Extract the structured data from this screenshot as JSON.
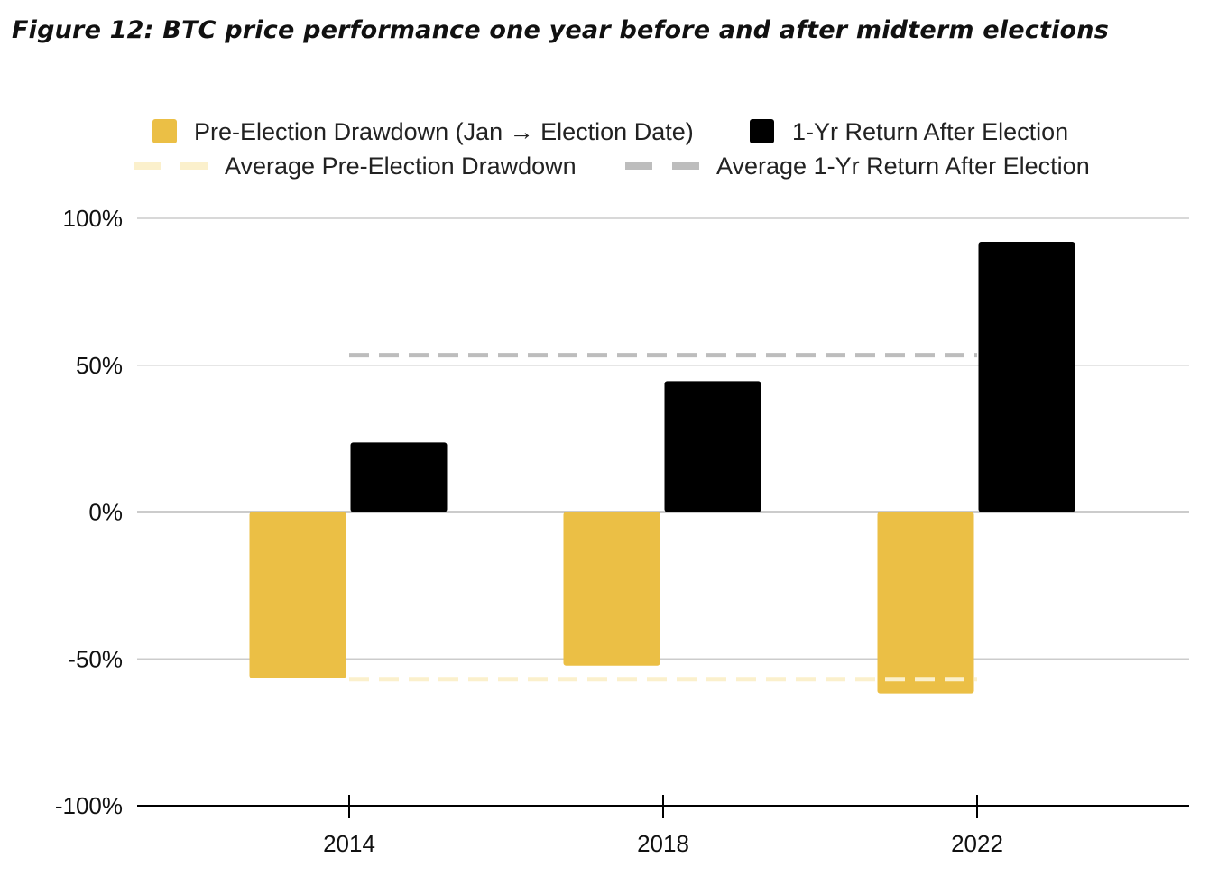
{
  "title": "Figure 12: BTC price performance one year before and after midterm elections",
  "chart_data": {
    "type": "bar",
    "title": "",
    "xlabel": "",
    "ylabel": "",
    "categories": [
      "2014",
      "2018",
      "2022"
    ],
    "series": [
      {
        "name": "Pre-Election Drawdown (Jan → Election Date)",
        "values": [
          -56.6,
          -52.3,
          -61.8
        ],
        "color": "#EBBF45"
      },
      {
        "name": "1-Yr Return After Election",
        "values": [
          23.7,
          44.6,
          92.0
        ],
        "color": "#000000"
      }
    ],
    "reference_lines": [
      {
        "name": "Average Pre-Election Drawdown",
        "value": -56.9,
        "color": "#FBF0CC",
        "style": "dashed"
      },
      {
        "name": "Average 1-Yr Return After Election",
        "value": 53.4,
        "color": "#BDBDBD",
        "style": "dashed"
      }
    ],
    "ylim": [
      -100,
      100
    ],
    "yticks": [
      100,
      50,
      0,
      -50,
      -100
    ],
    "ytick_labels": [
      "100%",
      "50%",
      "0%",
      "-50%",
      "-100%"
    ],
    "grid": true,
    "legend_position": "top"
  }
}
